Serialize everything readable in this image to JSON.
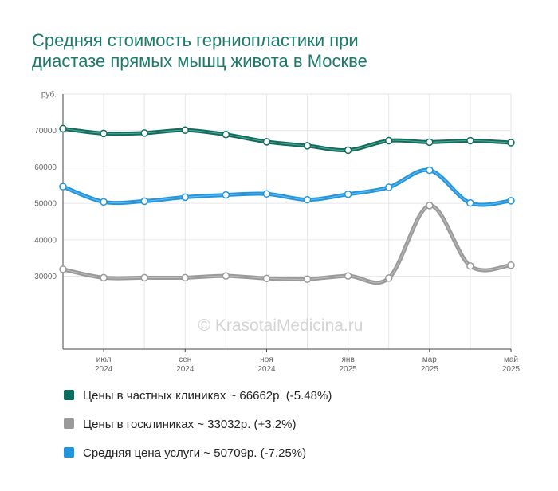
{
  "title_line1": "Средняя стоимость герниопластики при",
  "title_line2": "диастазе прямых мышц живота в Москве",
  "watermark": "© KrasotaiMedicina.ru",
  "colors": {
    "private": "#0e6e5e",
    "public": "#9a9a9a",
    "average": "#2196de",
    "title": "#1b7a6a"
  },
  "legend": [
    {
      "key": "private",
      "label": "Цены в частных клиниках ~ 66662р. (-5.48%)"
    },
    {
      "key": "public",
      "label": "Цены в госклиниках ~ 33032р. (+3.2%)"
    },
    {
      "key": "average",
      "label": "Средняя цена услуги ~ 50709р. (-7.25%)"
    }
  ],
  "chart_data": {
    "type": "line",
    "title": "Средняя стоимость герниопластики при диастазе прямых мышц живота в Москве",
    "ylabel": "руб.",
    "ylim": [
      10000,
      80000
    ],
    "yticks": [
      30000,
      40000,
      50000,
      60000,
      70000
    ],
    "x": [
      "2024-06",
      "2024-07",
      "2024-08",
      "2024-09",
      "2024-10",
      "2024-11",
      "2024-12",
      "2025-01",
      "2025-02",
      "2025-03",
      "2025-04",
      "2025-05"
    ],
    "xtick_labels": [
      {
        "index": 1,
        "month": "июл",
        "year": "2024"
      },
      {
        "index": 3,
        "month": "сен",
        "year": "2024"
      },
      {
        "index": 5,
        "month": "ноя",
        "year": "2024"
      },
      {
        "index": 7,
        "month": "янв",
        "year": "2025"
      },
      {
        "index": 9,
        "month": "мар",
        "year": "2025"
      },
      {
        "index": 11,
        "month": "май",
        "year": "2025"
      }
    ],
    "grid": true,
    "legend_position": "bottom",
    "series": [
      {
        "key": "private",
        "name": "Цены в частных клиниках",
        "values": [
          70500,
          69200,
          69300,
          70100,
          68900,
          66900,
          65800,
          64600,
          67200,
          66800,
          67200,
          66662
        ]
      },
      {
        "key": "average",
        "name": "Средняя цена услуги",
        "values": [
          54600,
          50400,
          50600,
          51700,
          52300,
          52600,
          51000,
          52500,
          54400,
          59100,
          50100,
          50709
        ]
      },
      {
        "key": "public",
        "name": "Цены в госклиниках",
        "values": [
          31900,
          29600,
          29600,
          29600,
          30100,
          29400,
          29200,
          30100,
          29500,
          49400,
          32800,
          33032
        ]
      }
    ]
  }
}
